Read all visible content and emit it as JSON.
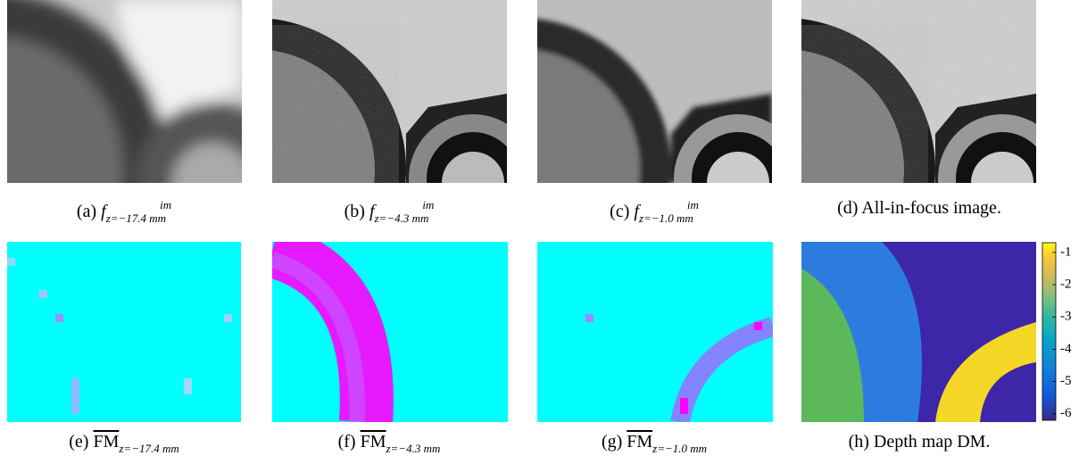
{
  "panels": [
    {
      "label": "(a)",
      "symbol": "f",
      "superscript": "im",
      "subscript": "z=−17.4 mm"
    },
    {
      "label": "(b)",
      "symbol": "f",
      "superscript": "im",
      "subscript": "z=−4.3 mm"
    },
    {
      "label": "(c)",
      "symbol": "f",
      "superscript": "im",
      "subscript": "z=−1.0 mm"
    },
    {
      "label": "(d)",
      "text": "All-in-focus image."
    },
    {
      "label": "(e)",
      "symbol": "FM",
      "subscript": "z=−17.4 mm"
    },
    {
      "label": "(f)",
      "symbol": "FM",
      "subscript": "z=−4.3 mm"
    },
    {
      "label": "(g)",
      "symbol": "FM",
      "subscript": "z=−1.0 mm"
    },
    {
      "label": "(h)",
      "text": "Depth map DM."
    }
  ],
  "colorbar": {
    "range": [
      -6.2,
      -0.7
    ],
    "ticks": [
      -1,
      -2,
      -3,
      -4,
      -5,
      -6
    ]
  }
}
